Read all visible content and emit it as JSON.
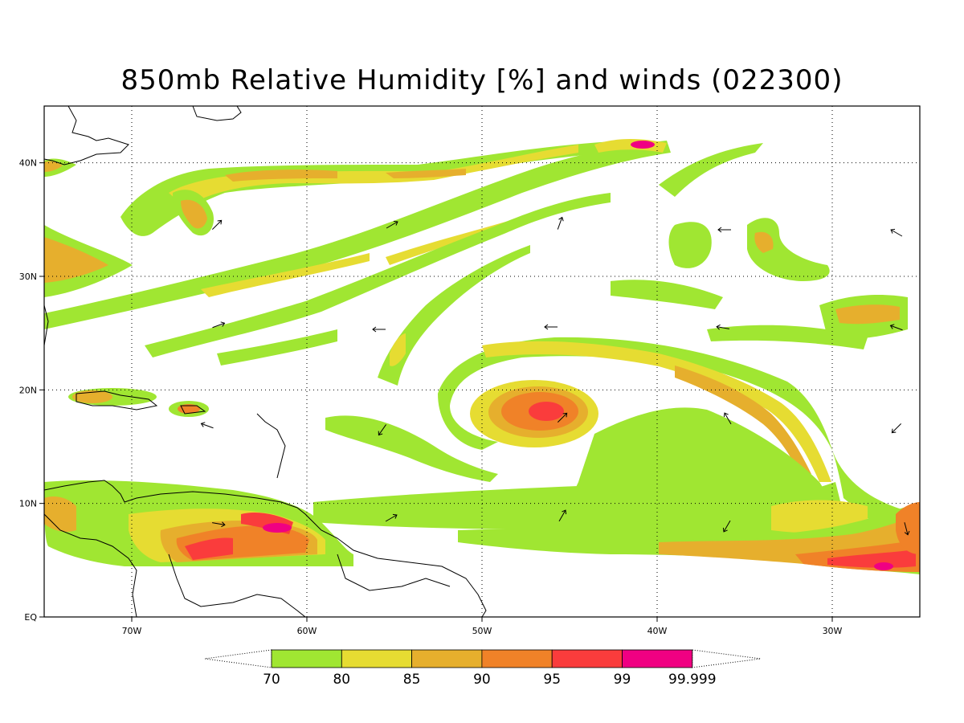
{
  "title": "850mb Relative Humidity [%] and winds (022300)",
  "map": {
    "lon_range": [
      -75,
      -25
    ],
    "lat_range": [
      0,
      45
    ],
    "lon_ticks": [
      {
        "value": -70,
        "label": "70W"
      },
      {
        "value": -60,
        "label": "60W"
      },
      {
        "value": -50,
        "label": "50W"
      },
      {
        "value": -40,
        "label": "40W"
      },
      {
        "value": -30,
        "label": "30W"
      }
    ],
    "lat_ticks": [
      {
        "value": 0,
        "label": "EQ"
      },
      {
        "value": 10,
        "label": "10N"
      },
      {
        "value": 20,
        "label": "20N"
      },
      {
        "value": 30,
        "label": "30N"
      },
      {
        "value": 40,
        "label": "40N"
      }
    ],
    "grid": "dotted"
  },
  "colorbar": {
    "levels": [
      "70",
      "80",
      "85",
      "90",
      "95",
      "99",
      "99.999"
    ],
    "colors": [
      "#a0e632",
      "#e6dc32",
      "#e6af2d",
      "#f08228",
      "#fa3c3c",
      "#f00082"
    ]
  }
}
